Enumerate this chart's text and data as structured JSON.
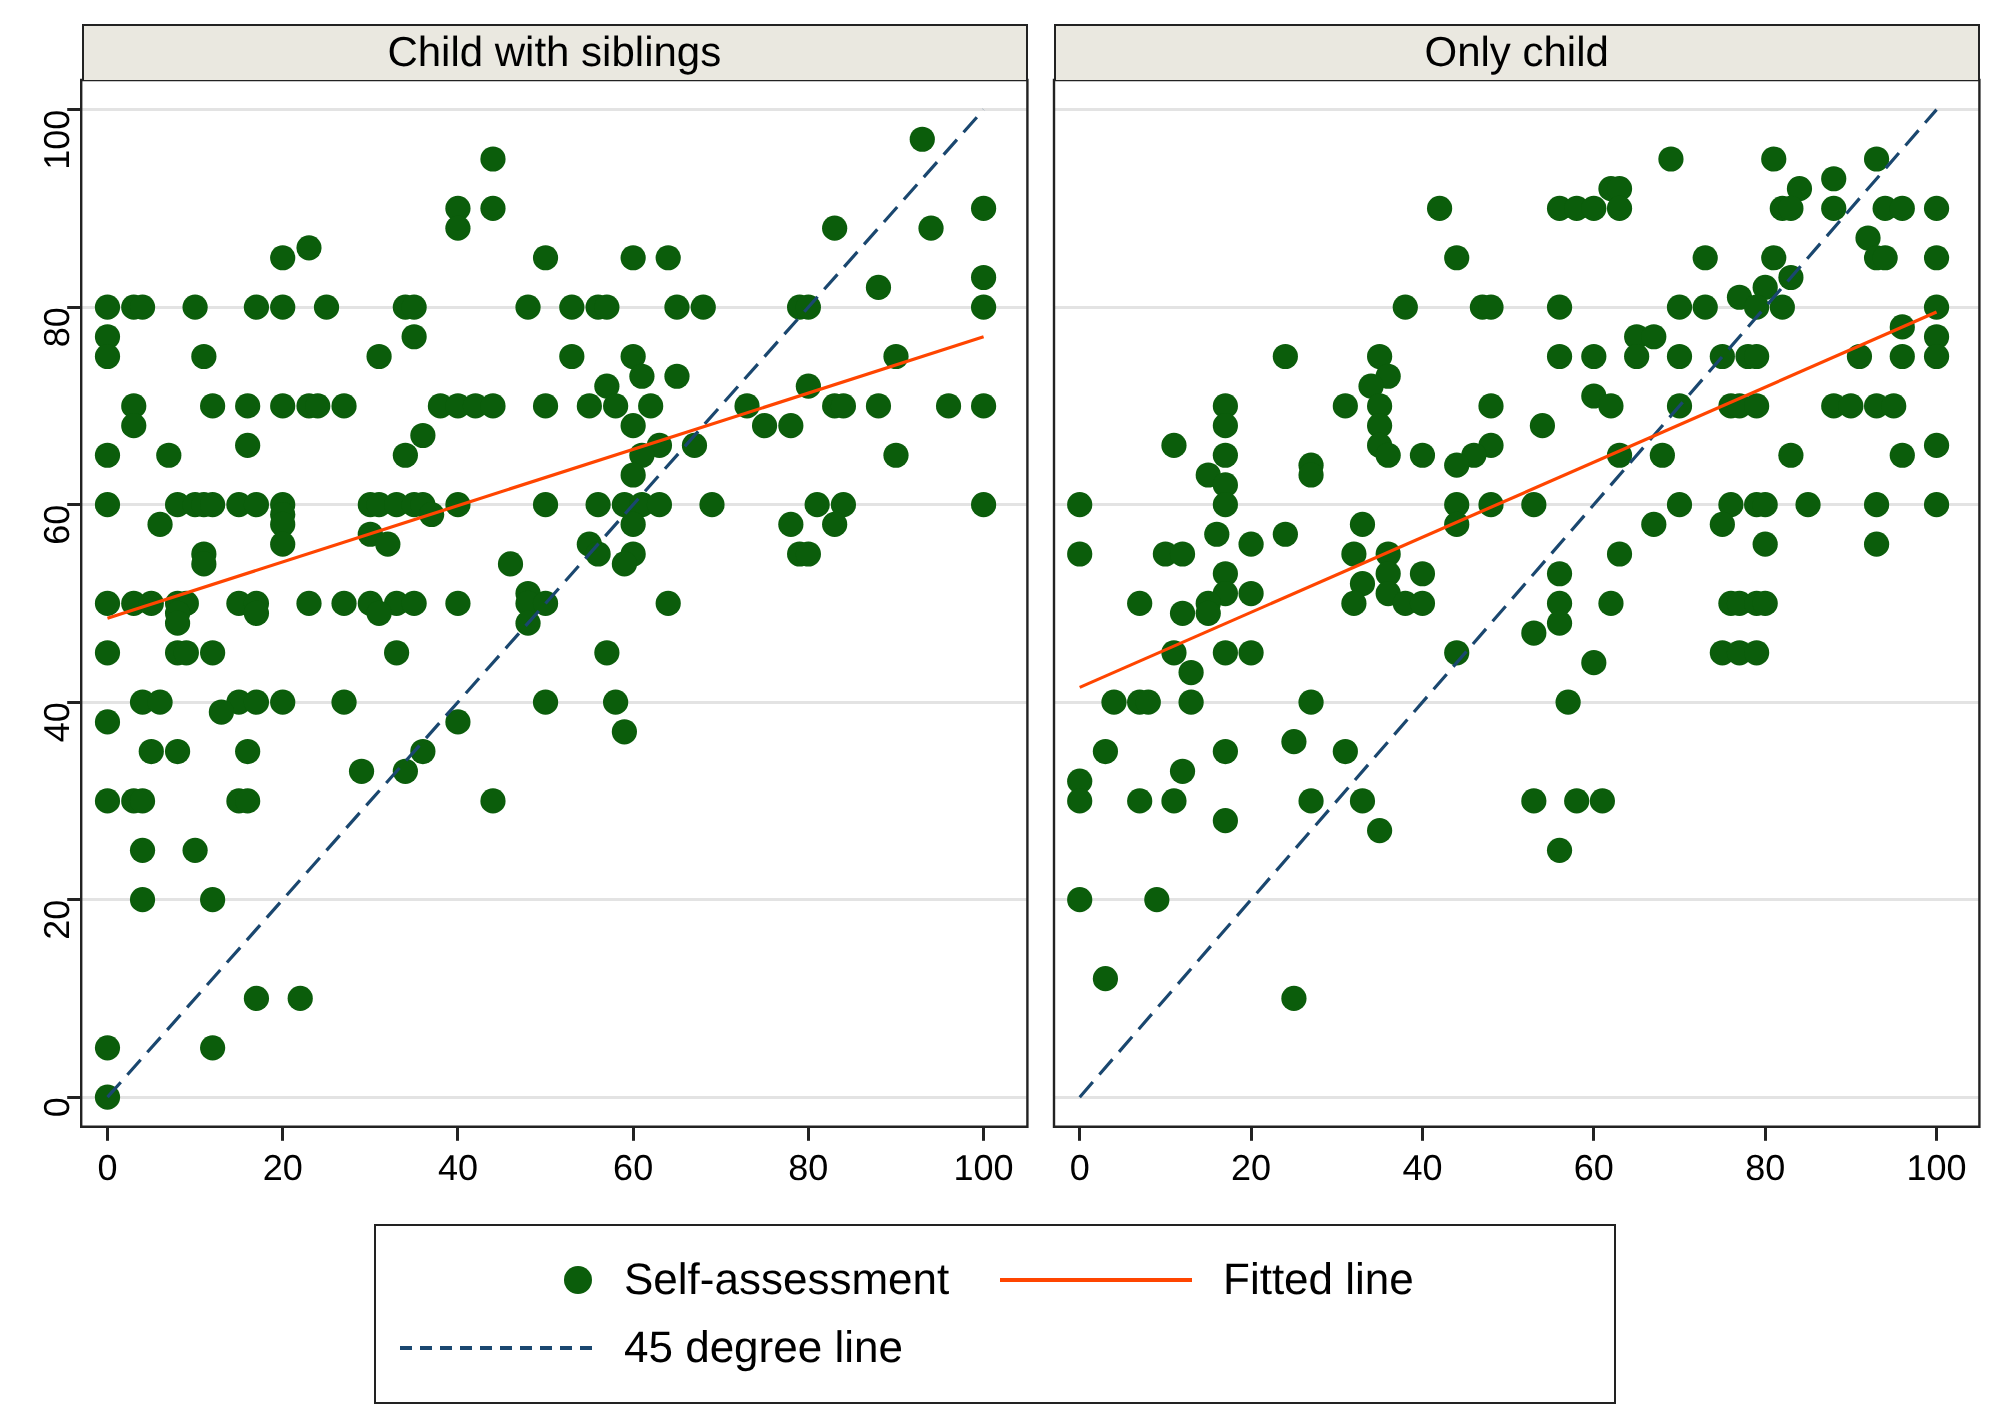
{
  "chart_data": [
    {
      "type": "scatter",
      "title": "Child with siblings",
      "xlim": [
        -3,
        105
      ],
      "ylim": [
        -3,
        103
      ],
      "xticks": [
        0,
        20,
        40,
        60,
        80,
        100
      ],
      "yticks": [
        0,
        20,
        40,
        60,
        80,
        100
      ],
      "grid": "y",
      "legend": "bottom",
      "series": [
        {
          "name": "Self-assessment",
          "type": "scatter",
          "marker": "circle",
          "color": "#0b5d0b",
          "x": [
            44,
            40,
            44,
            100,
            40,
            83,
            94,
            23,
            20,
            50,
            60,
            64,
            100,
            88,
            93,
            0,
            3,
            4,
            10,
            17,
            20,
            25,
            34,
            35,
            48,
            53,
            56,
            57,
            65,
            68,
            79,
            80,
            100,
            0,
            35,
            0,
            11,
            31,
            53,
            60,
            90,
            61,
            65,
            57,
            80,
            3,
            12,
            16,
            20,
            23,
            24,
            27,
            38,
            40,
            42,
            44,
            50,
            55,
            58,
            62,
            73,
            83,
            84,
            88,
            96,
            100,
            3,
            60,
            75,
            78,
            36,
            16,
            63,
            67,
            0,
            7,
            34,
            61,
            90,
            60,
            0,
            8,
            10,
            11,
            12,
            15,
            17,
            20,
            30,
            31,
            33,
            35,
            36,
            40,
            50,
            56,
            59,
            61,
            63,
            69,
            81,
            84,
            100,
            20,
            37,
            6,
            20,
            60,
            78,
            83,
            30,
            20,
            32,
            55,
            11,
            56,
            60,
            79,
            80,
            11,
            46,
            59,
            48,
            0,
            3,
            5,
            8,
            9,
            15,
            17,
            23,
            27,
            30,
            33,
            35,
            40,
            48,
            50,
            64,
            8,
            17,
            31,
            8,
            48,
            0,
            8,
            9,
            12,
            33,
            57,
            4,
            6,
            15,
            17,
            20,
            27,
            50,
            58,
            13,
            0,
            40,
            59,
            5,
            8,
            16,
            36,
            29,
            34,
            0,
            3,
            4,
            15,
            16,
            44,
            4,
            10,
            4,
            12,
            17,
            22,
            0,
            12,
            0
          ],
          "values": [
            95,
            90,
            90,
            90,
            88,
            88,
            88,
            86,
            85,
            85,
            85,
            85,
            83,
            82,
            97,
            80,
            80,
            80,
            80,
            80,
            80,
            80,
            80,
            80,
            80,
            80,
            80,
            80,
            80,
            80,
            80,
            80,
            80,
            77,
            77,
            75,
            75,
            75,
            75,
            75,
            75,
            73,
            73,
            72,
            72,
            70,
            70,
            70,
            70,
            70,
            70,
            70,
            70,
            70,
            70,
            70,
            70,
            70,
            70,
            70,
            70,
            70,
            70,
            70,
            70,
            70,
            68,
            68,
            68,
            68,
            67,
            66,
            66,
            66,
            65,
            65,
            65,
            65,
            65,
            63,
            60,
            60,
            60,
            60,
            60,
            60,
            60,
            60,
            60,
            60,
            60,
            60,
            60,
            60,
            60,
            60,
            60,
            60,
            60,
            60,
            60,
            60,
            60,
            59,
            59,
            58,
            58,
            58,
            58,
            58,
            57,
            56,
            56,
            56,
            55,
            55,
            55,
            55,
            55,
            54,
            54,
            54,
            51,
            50,
            50,
            50,
            50,
            50,
            50,
            50,
            50,
            50,
            50,
            50,
            50,
            50,
            50,
            50,
            50,
            49,
            49,
            49,
            48,
            48,
            45,
            45,
            45,
            45,
            45,
            45,
            40,
            40,
            40,
            40,
            40,
            40,
            40,
            40,
            39,
            38,
            38,
            37,
            35,
            35,
            35,
            35,
            33,
            33,
            30,
            30,
            30,
            30,
            30,
            30,
            25,
            25,
            20,
            20,
            10,
            10,
            5,
            5,
            0
          ]
        },
        {
          "name": "Fitted line",
          "type": "line",
          "marker": "none",
          "line_style": "solid",
          "color": "#ff4500",
          "x": [
            0,
            100
          ],
          "values": [
            48.5,
            77
          ]
        },
        {
          "name": "45 degree line",
          "type": "line",
          "marker": "none",
          "line_style": "dashed",
          "color": "#1a476f",
          "x": [
            0,
            100
          ],
          "values": [
            0,
            100
          ]
        }
      ]
    },
    {
      "type": "scatter",
      "title": "Only child",
      "xlim": [
        -3,
        105
      ],
      "ylim": [
        -3,
        103
      ],
      "xticks": [
        0,
        20,
        40,
        60,
        80,
        100
      ],
      "yticks": [
        0,
        20,
        40,
        60,
        80,
        100
      ],
      "grid": "y",
      "tick_labels": "x",
      "series": [
        {
          "type": "scatter",
          "marker": "circle",
          "color": "#0b5d0b",
          "x": [
            69,
            81,
            93,
            88,
            62,
            63,
            84,
            42,
            56,
            58,
            60,
            63,
            82,
            83,
            88,
            94,
            96,
            100,
            92,
            44,
            73,
            81,
            93,
            94,
            100,
            83,
            80,
            77,
            38,
            47,
            48,
            56,
            70,
            73,
            79,
            82,
            100,
            96,
            65,
            67,
            100,
            24,
            35,
            56,
            60,
            65,
            70,
            75,
            78,
            79,
            91,
            96,
            100,
            36,
            34,
            60,
            17,
            31,
            35,
            48,
            62,
            70,
            76,
            77,
            79,
            88,
            90,
            93,
            95,
            17,
            35,
            54,
            11,
            35,
            48,
            100,
            17,
            36,
            40,
            46,
            63,
            68,
            83,
            96,
            27,
            44,
            15,
            27,
            17,
            0,
            17,
            44,
            48,
            53,
            70,
            76,
            79,
            80,
            85,
            93,
            100,
            33,
            44,
            67,
            75,
            16,
            24,
            20,
            80,
            93,
            0,
            10,
            12,
            32,
            36,
            63,
            17,
            36,
            40,
            56,
            33,
            17,
            20,
            36,
            7,
            15,
            32,
            38,
            40,
            56,
            62,
            76,
            77,
            79,
            80,
            12,
            15,
            56,
            53,
            11,
            17,
            20,
            44,
            75,
            77,
            79,
            60,
            13,
            4,
            7,
            8,
            13,
            27,
            57,
            25,
            3,
            17,
            31,
            12,
            0,
            0,
            7,
            11,
            27,
            33,
            53,
            58,
            61,
            17,
            35,
            56,
            0,
            9,
            3,
            25
          ],
          "values": [
            95,
            95,
            95,
            93,
            92,
            92,
            92,
            90,
            90,
            90,
            90,
            90,
            90,
            90,
            90,
            90,
            90,
            90,
            87,
            85,
            85,
            85,
            85,
            85,
            85,
            83,
            82,
            81,
            80,
            80,
            80,
            80,
            80,
            80,
            80,
            80,
            80,
            78,
            77,
            77,
            77,
            75,
            75,
            75,
            75,
            75,
            75,
            75,
            75,
            75,
            75,
            75,
            75,
            73,
            72,
            71,
            70,
            70,
            70,
            70,
            70,
            70,
            70,
            70,
            70,
            70,
            70,
            70,
            70,
            68,
            68,
            68,
            66,
            66,
            66,
            66,
            65,
            65,
            65,
            65,
            65,
            65,
            65,
            65,
            64,
            64,
            63,
            63,
            62,
            60,
            60,
            60,
            60,
            60,
            60,
            60,
            60,
            60,
            60,
            60,
            60,
            58,
            58,
            58,
            58,
            57,
            57,
            56,
            56,
            56,
            55,
            55,
            55,
            55,
            55,
            55,
            53,
            53,
            53,
            53,
            52,
            51,
            51,
            51,
            50,
            50,
            50,
            50,
            50,
            50,
            50,
            50,
            50,
            50,
            50,
            49,
            49,
            48,
            47,
            45,
            45,
            45,
            45,
            45,
            45,
            45,
            44,
            43,
            40,
            40,
            40,
            40,
            40,
            40,
            36,
            35,
            35,
            35,
            33,
            32,
            30,
            30,
            30,
            30,
            30,
            30,
            30,
            30,
            28,
            27,
            25,
            20,
            20,
            12,
            10
          ]
        },
        {
          "type": "line",
          "marker": "none",
          "line_style": "solid",
          "color": "#ff4500",
          "x": [
            0,
            100
          ],
          "values": [
            41.5,
            79.5
          ]
        },
        {
          "type": "line",
          "marker": "none",
          "line_style": "dashed",
          "color": "#1a476f",
          "x": [
            0,
            100
          ],
          "values": [
            0,
            100
          ]
        }
      ]
    }
  ]
}
